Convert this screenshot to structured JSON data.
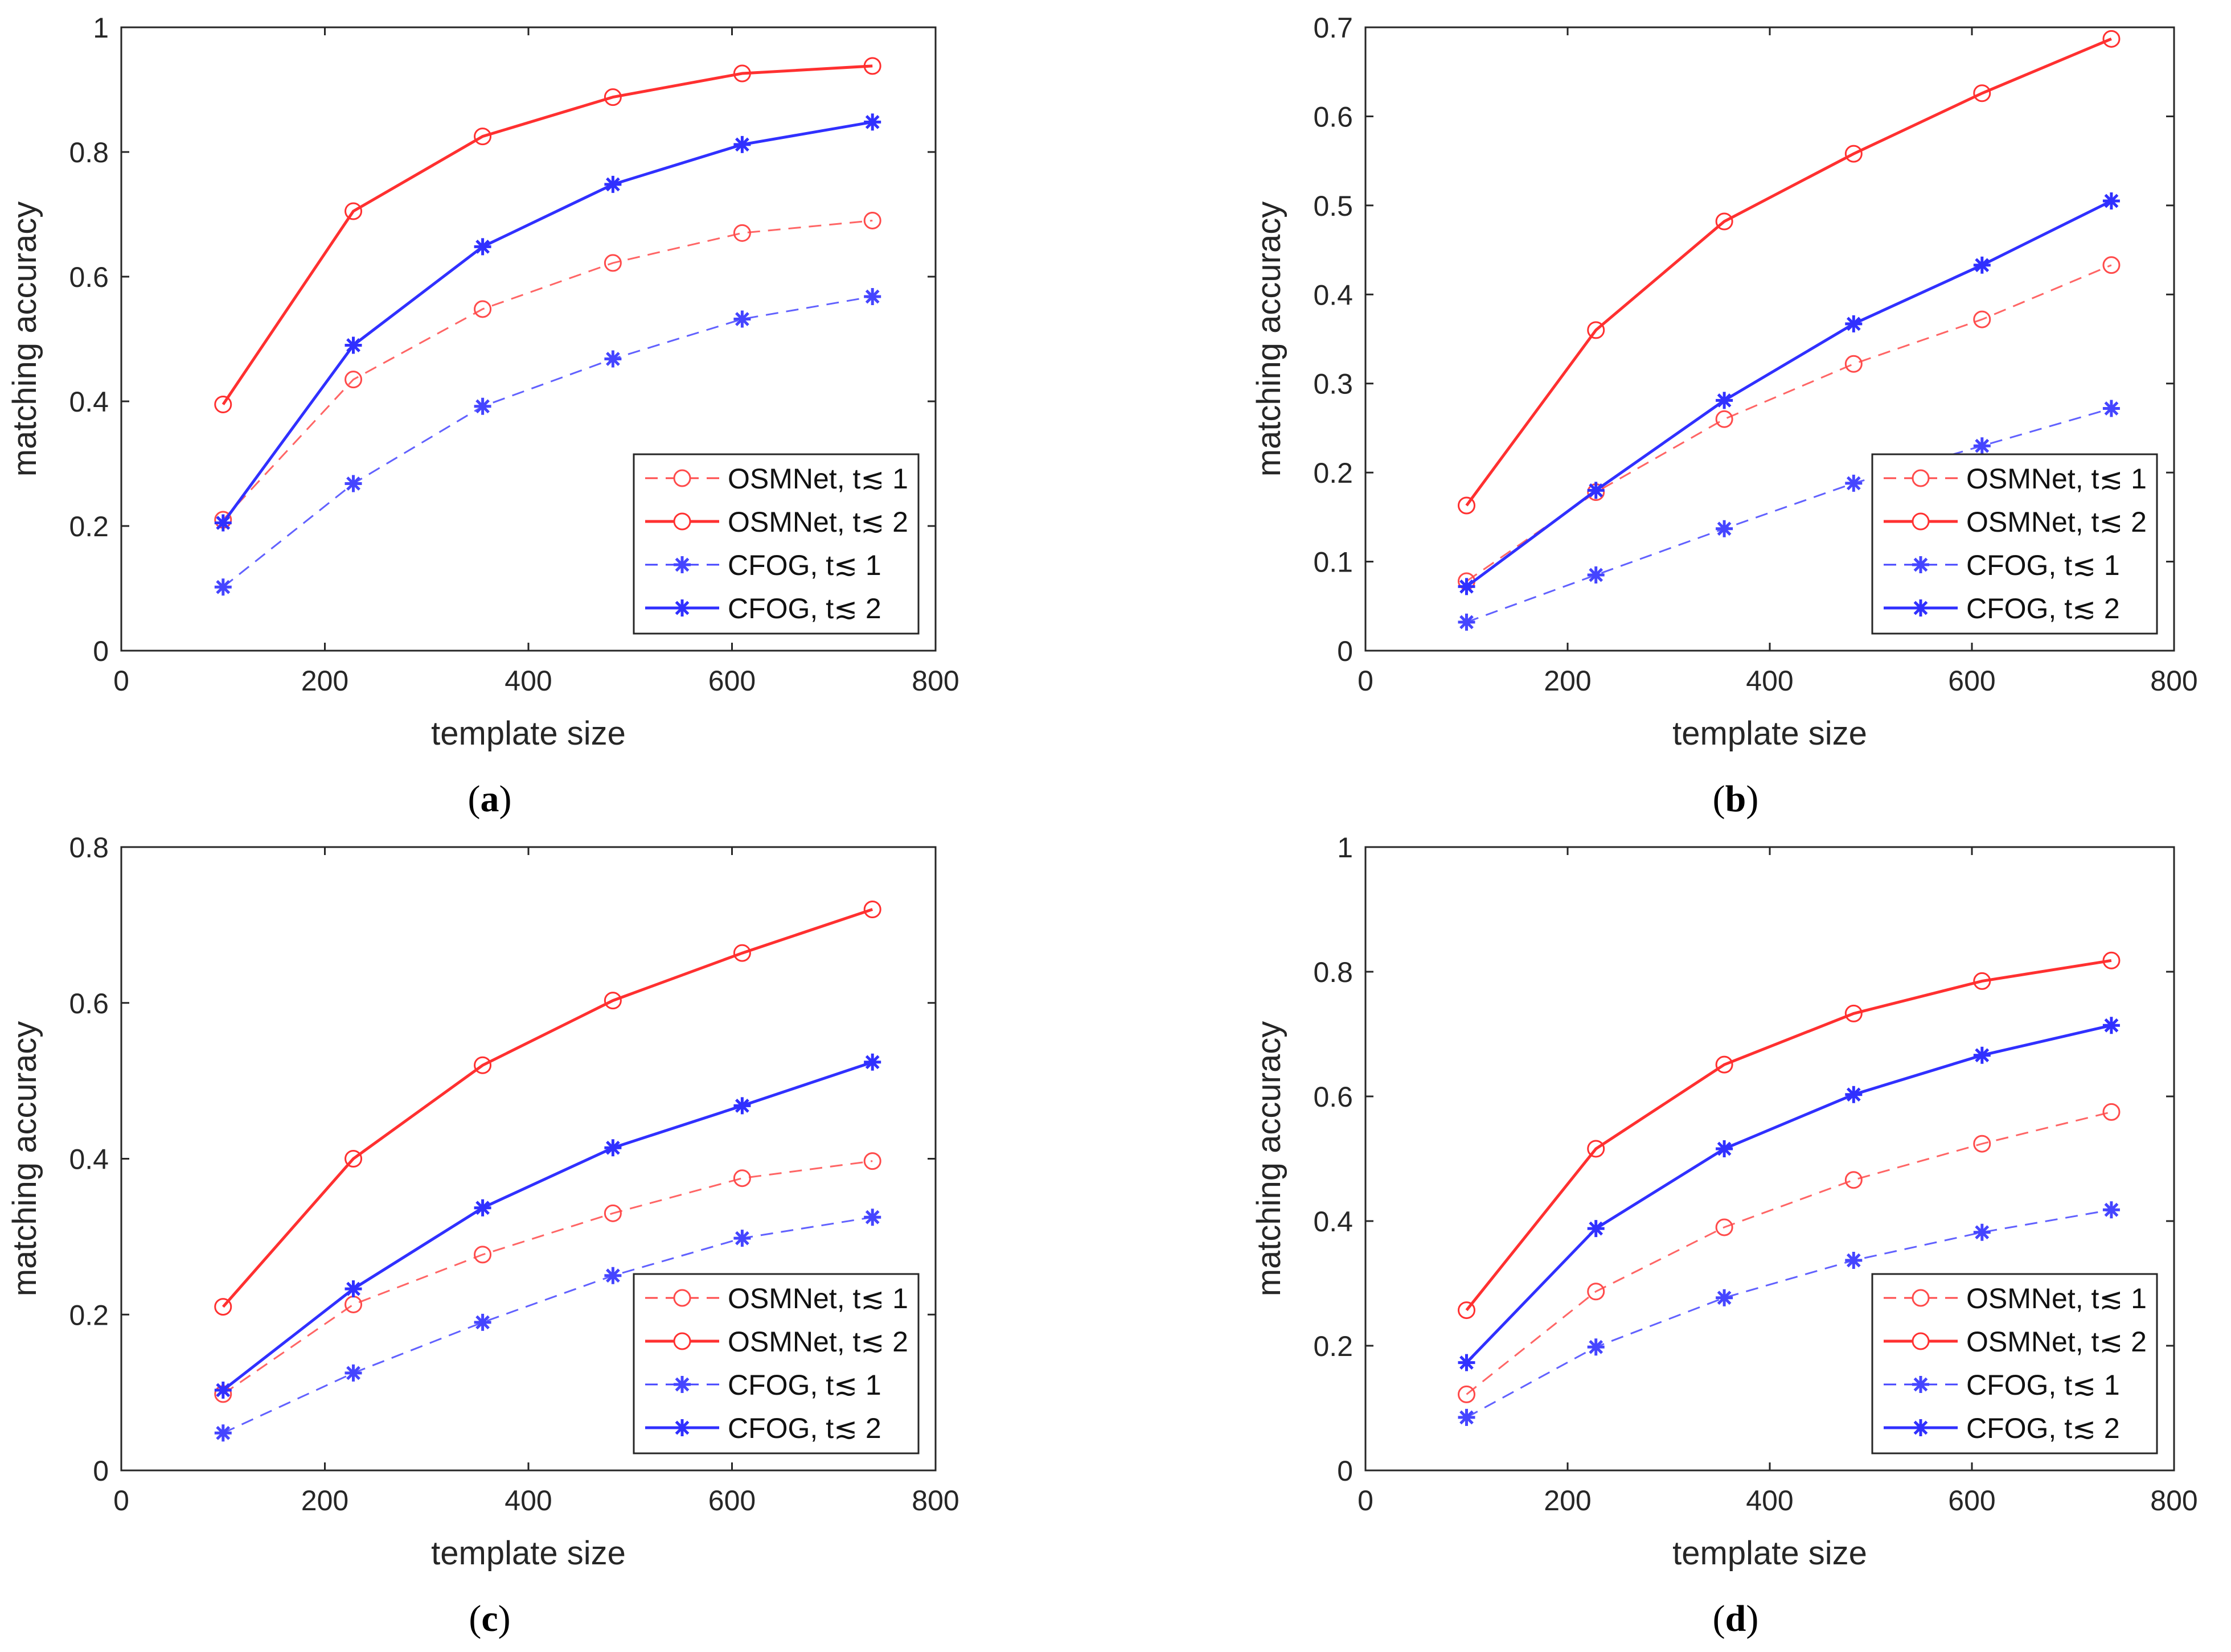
{
  "figure": {
    "series_styles": [
      {
        "key": "osm_t1",
        "color": "#ff4a4a",
        "dash": true,
        "marker": "circle"
      },
      {
        "key": "osm_t2",
        "color": "#ff3030",
        "dash": false,
        "marker": "circle"
      },
      {
        "key": "cfog_t1",
        "color": "#4545ff",
        "dash": true,
        "marker": "star"
      },
      {
        "key": "cfog_t2",
        "color": "#3030ff",
        "dash": false,
        "marker": "star"
      }
    ]
  },
  "chart_data": [
    {
      "type": "line",
      "panel": "a",
      "caption": {
        "open": "(",
        "letter": "a",
        "close": ")"
      },
      "xlabel": "template size",
      "ylabel": "matching  accuracy",
      "xlim": [
        0,
        800
      ],
      "ylim": [
        0,
        1
      ],
      "xticks": [
        "0",
        "200",
        "400",
        "600",
        "800"
      ],
      "yticks": [
        "0",
        "0.2",
        "0.4",
        "0.6",
        "0.8",
        "1"
      ],
      "x": [
        100,
        228,
        355,
        483,
        610,
        738
      ],
      "legend_position": "bottom-right",
      "series": [
        {
          "name": "OSMNet, t≲ 1",
          "values": [
            0.21,
            0.435,
            0.548,
            0.622,
            0.67,
            0.69
          ]
        },
        {
          "name": "OSMNet, t≲ 2",
          "values": [
            0.395,
            0.705,
            0.825,
            0.888,
            0.926,
            0.938
          ]
        },
        {
          "name": "CFOG, t≲ 1",
          "values": [
            0.102,
            0.268,
            0.392,
            0.468,
            0.532,
            0.568
          ]
        },
        {
          "name": "CFOG, t≲ 2",
          "values": [
            0.205,
            0.49,
            0.648,
            0.748,
            0.812,
            0.848
          ]
        }
      ]
    },
    {
      "type": "line",
      "panel": "b",
      "caption": {
        "open": "(",
        "letter": "b",
        "close": ")"
      },
      "xlabel": "template size",
      "ylabel": "matching  accuracy",
      "xlim": [
        0,
        800
      ],
      "ylim": [
        0,
        0.7
      ],
      "xticks": [
        "0",
        "200",
        "400",
        "600",
        "800"
      ],
      "yticks": [
        "0",
        "0.1",
        "0.2",
        "0.3",
        "0.4",
        "0.5",
        "0.6",
        "0.7"
      ],
      "x": [
        100,
        228,
        355,
        483,
        610,
        738
      ],
      "legend_position": "bottom-right",
      "series": [
        {
          "name": "OSMNet, t≲ 1",
          "values": [
            0.078,
            0.178,
            0.26,
            0.322,
            0.372,
            0.433
          ]
        },
        {
          "name": "OSMNet, t≲ 2",
          "values": [
            0.163,
            0.36,
            0.482,
            0.558,
            0.626,
            0.687
          ]
        },
        {
          "name": "CFOG, t≲ 1",
          "values": [
            0.032,
            0.085,
            0.137,
            0.188,
            0.23,
            0.272
          ]
        },
        {
          "name": "CFOG, t≲ 2",
          "values": [
            0.072,
            0.18,
            0.281,
            0.367,
            0.433,
            0.505
          ]
        }
      ]
    },
    {
      "type": "line",
      "panel": "c",
      "caption": {
        "open": "(",
        "letter": "c",
        "close": ")"
      },
      "xlabel": "template size",
      "ylabel": "matching  accuracy",
      "xlim": [
        0,
        800
      ],
      "ylim": [
        0,
        0.8
      ],
      "xticks": [
        "0",
        "200",
        "400",
        "600",
        "800"
      ],
      "yticks": [
        "0",
        "0.2",
        "0.4",
        "0.6",
        "0.8"
      ],
      "x": [
        100,
        228,
        355,
        483,
        610,
        738
      ],
      "legend_position": "bottom-right",
      "series": [
        {
          "name": "OSMNet, t≲ 1",
          "values": [
            0.098,
            0.213,
            0.277,
            0.33,
            0.375,
            0.397
          ]
        },
        {
          "name": "OSMNet, t≲ 2",
          "values": [
            0.21,
            0.4,
            0.52,
            0.603,
            0.664,
            0.72
          ]
        },
        {
          "name": "CFOG, t≲ 1",
          "values": [
            0.048,
            0.125,
            0.19,
            0.25,
            0.298,
            0.325
          ]
        },
        {
          "name": "CFOG, t≲ 2",
          "values": [
            0.103,
            0.233,
            0.337,
            0.414,
            0.468,
            0.524
          ]
        }
      ]
    },
    {
      "type": "line",
      "panel": "d",
      "caption": {
        "open": "(",
        "letter": "d",
        "close": ")"
      },
      "xlabel": "template size",
      "ylabel": "matching  accuracy",
      "xlim": [
        0,
        800
      ],
      "ylim": [
        0,
        1
      ],
      "xticks": [
        "0",
        "200",
        "400",
        "600",
        "800"
      ],
      "yticks": [
        "0",
        "0.2",
        "0.4",
        "0.6",
        "0.8",
        "1"
      ],
      "x": [
        100,
        228,
        355,
        483,
        610,
        738
      ],
      "legend_position": "bottom-right",
      "series": [
        {
          "name": "OSMNet, t≲ 1",
          "values": [
            0.122,
            0.287,
            0.39,
            0.466,
            0.524,
            0.575
          ]
        },
        {
          "name": "OSMNet, t≲ 2",
          "values": [
            0.257,
            0.516,
            0.651,
            0.733,
            0.785,
            0.818
          ]
        },
        {
          "name": "CFOG, t≲ 1",
          "values": [
            0.085,
            0.198,
            0.277,
            0.337,
            0.382,
            0.418
          ]
        },
        {
          "name": "CFOG, t≲ 2",
          "values": [
            0.173,
            0.388,
            0.516,
            0.603,
            0.666,
            0.714
          ]
        }
      ]
    }
  ]
}
